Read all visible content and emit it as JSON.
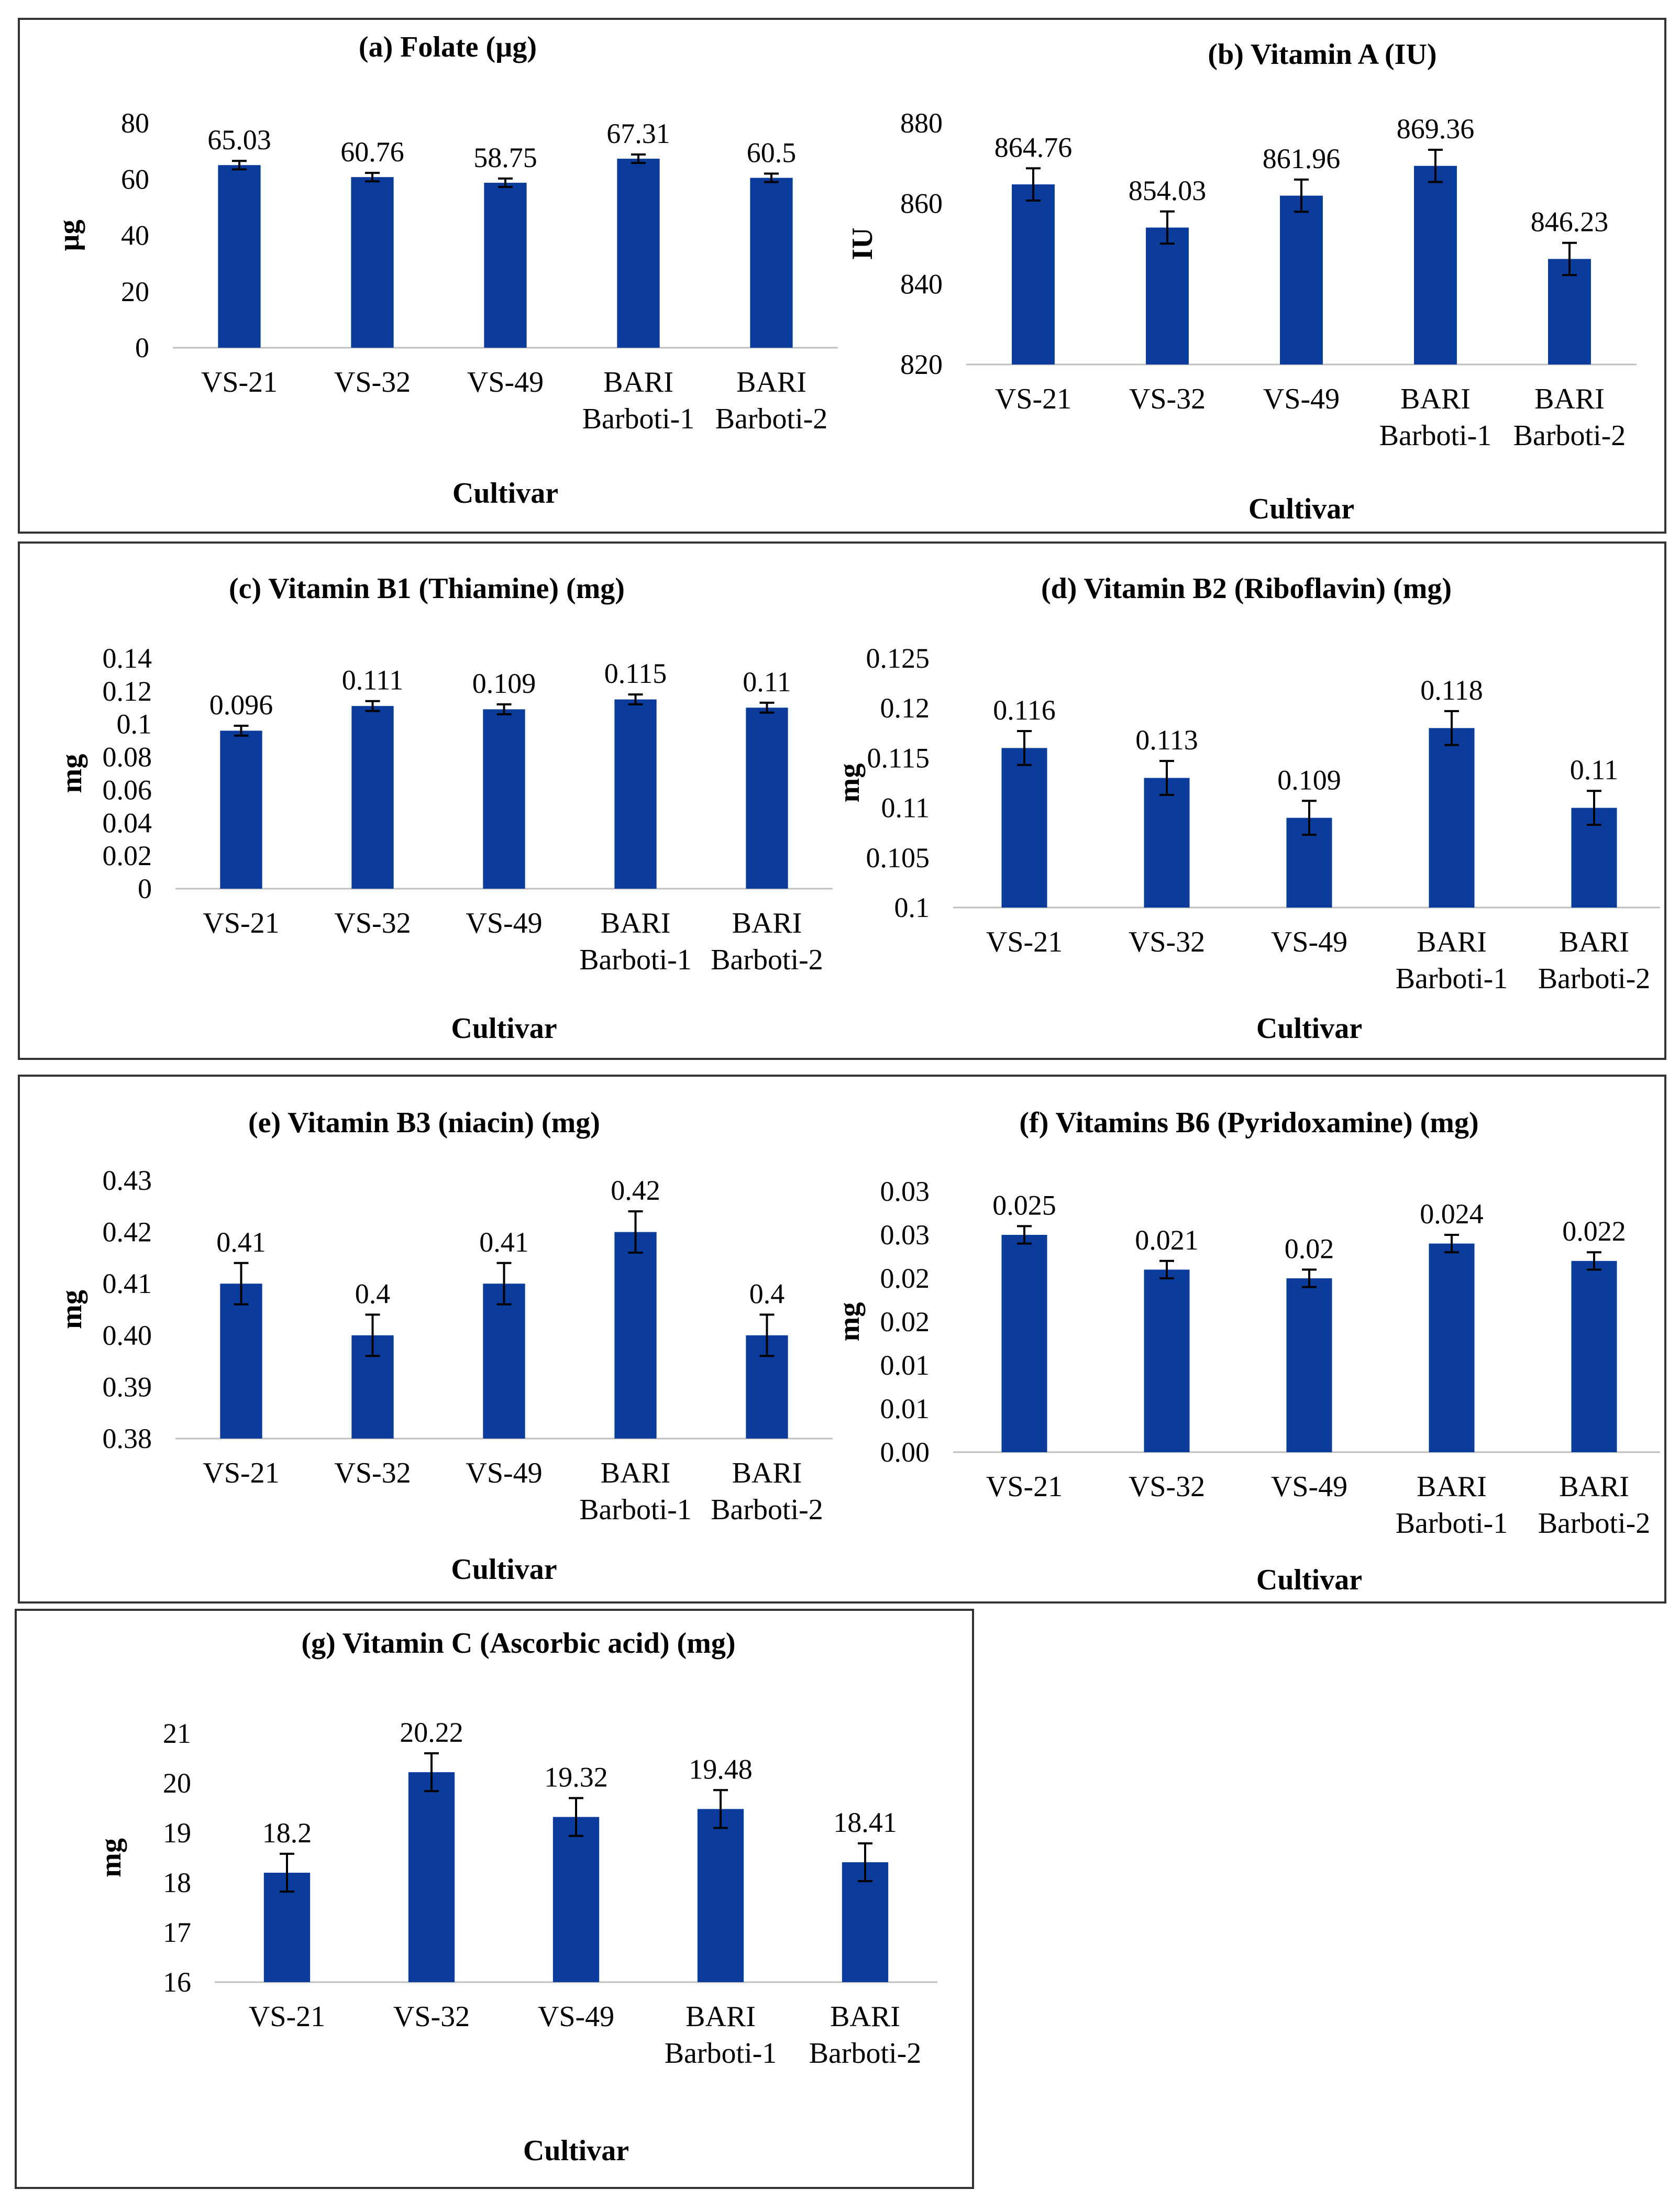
{
  "categories": [
    "VS-21",
    "VS-32",
    "VS-49",
    "BARI Barboti-1",
    "BARI Barboti-2"
  ],
  "style": {
    "bar_color": "#0B3C9C",
    "axis_color": "#BFBFBF",
    "frame_color": "#333333"
  },
  "chart_data": [
    {
      "id": "a",
      "type": "bar",
      "title": "(a) Folate (µg)",
      "xlabel": "Cultivar",
      "ylabel": "µg",
      "ylim": [
        0,
        80
      ],
      "yticks": [
        0,
        20,
        40,
        60,
        80
      ],
      "ytick_labels": [
        "0",
        "20",
        "40",
        "60",
        "80"
      ],
      "values": [
        65.03,
        60.76,
        58.75,
        67.31,
        60.5
      ],
      "errors": [
        1.5,
        1.5,
        1.5,
        1.5,
        1.5
      ],
      "value_labels": [
        "65.03",
        "60.76",
        "58.75",
        "67.31",
        "60.5"
      ]
    },
    {
      "id": "b",
      "type": "bar",
      "title": "(b) Vitamin A (IU)",
      "xlabel": "Cultivar",
      "ylabel": "IU",
      "ylim": [
        820,
        880
      ],
      "yticks": [
        820,
        840,
        860,
        880
      ],
      "ytick_labels": [
        "820",
        "840",
        "860",
        "880"
      ],
      "values": [
        864.76,
        854.03,
        861.96,
        869.36,
        846.23
      ],
      "errors": [
        4,
        4,
        4,
        4,
        4
      ],
      "value_labels": [
        "864.76",
        "854.03",
        "861.96",
        "869.36",
        "846.23"
      ]
    },
    {
      "id": "c",
      "type": "bar",
      "title": "(c) Vitamin B1 (Thiamine) (mg)",
      "xlabel": "Cultivar",
      "ylabel": "mg",
      "ylim": [
        0,
        0.14
      ],
      "yticks": [
        0,
        0.02,
        0.04,
        0.06,
        0.08,
        0.1,
        0.12,
        0.14
      ],
      "ytick_labels": [
        "0",
        "0.02",
        "0.04",
        "0.06",
        "0.08",
        "0.1",
        "0.12",
        "0.14"
      ],
      "values": [
        0.096,
        0.111,
        0.109,
        0.115,
        0.11
      ],
      "errors": [
        0.003,
        0.003,
        0.003,
        0.003,
        0.003
      ],
      "value_labels": [
        "0.096",
        "0.111",
        "0.109",
        "0.115",
        "0.11"
      ]
    },
    {
      "id": "d",
      "type": "bar",
      "title": "(d) Vitamin B2 (Riboflavin) (mg)",
      "xlabel": "Cultivar",
      "ylabel": "mg",
      "ylim": [
        0.1,
        0.125
      ],
      "yticks": [
        0.1,
        0.105,
        0.11,
        0.115,
        0.12,
        0.125
      ],
      "ytick_labels": [
        "0.1",
        "0.105",
        "0.11",
        "0.115",
        "0.12",
        "0.125"
      ],
      "values": [
        0.116,
        0.113,
        0.109,
        0.118,
        0.11
      ],
      "errors": [
        0.0017,
        0.0017,
        0.0017,
        0.0017,
        0.0017
      ],
      "value_labels": [
        "0.116",
        "0.113",
        "0.109",
        "0.118",
        "0.11"
      ]
    },
    {
      "id": "e",
      "type": "bar",
      "title": "(e) Vitamin B3 (niacin) (mg)",
      "xlabel": "Cultivar",
      "ylabel": "mg",
      "ylim": [
        0.38,
        0.43
      ],
      "yticks": [
        0.38,
        0.39,
        0.4,
        0.41,
        0.42,
        0.43
      ],
      "ytick_labels": [
        "0.38",
        "0.39",
        "0.40",
        "0.41",
        "0.42",
        "0.43"
      ],
      "values": [
        0.41,
        0.4,
        0.41,
        0.42,
        0.4
      ],
      "errors": [
        0.004,
        0.004,
        0.004,
        0.004,
        0.004
      ],
      "value_labels": [
        "0.41",
        "0.4",
        "0.41",
        "0.42",
        "0.4"
      ]
    },
    {
      "id": "f",
      "type": "bar",
      "title": "(f) Vitamins B6 (Pyridoxamine) (mg)",
      "xlabel": "Cultivar",
      "ylabel": "mg",
      "ylim": [
        0,
        0.03
      ],
      "yticks": [
        0,
        0.005,
        0.01,
        0.015,
        0.02,
        0.025,
        0.03
      ],
      "ytick_labels": [
        "0.00",
        "0.01",
        "0.01",
        "0.02",
        "0.02",
        "0.03",
        "0.03"
      ],
      "values": [
        0.025,
        0.021,
        0.02,
        0.024,
        0.022
      ],
      "errors": [
        0.001,
        0.001,
        0.001,
        0.001,
        0.001
      ],
      "value_labels": [
        "0.025",
        "0.021",
        "0.02",
        "0.024",
        "0.022"
      ]
    },
    {
      "id": "g",
      "type": "bar",
      "title": "(g) Vitamin C (Ascorbic acid) (mg)",
      "xlabel": "Cultivar",
      "ylabel": "mg",
      "ylim": [
        16,
        21
      ],
      "yticks": [
        16,
        17,
        18,
        19,
        20,
        21
      ],
      "ytick_labels": [
        "16",
        "17",
        "18",
        "19",
        "20",
        "21"
      ],
      "values": [
        18.2,
        20.22,
        19.32,
        19.48,
        18.41
      ],
      "errors": [
        0.38,
        0.38,
        0.38,
        0.38,
        0.38
      ],
      "value_labels": [
        "18.2",
        "20.22",
        "19.32",
        "19.48",
        "18.41"
      ]
    }
  ]
}
